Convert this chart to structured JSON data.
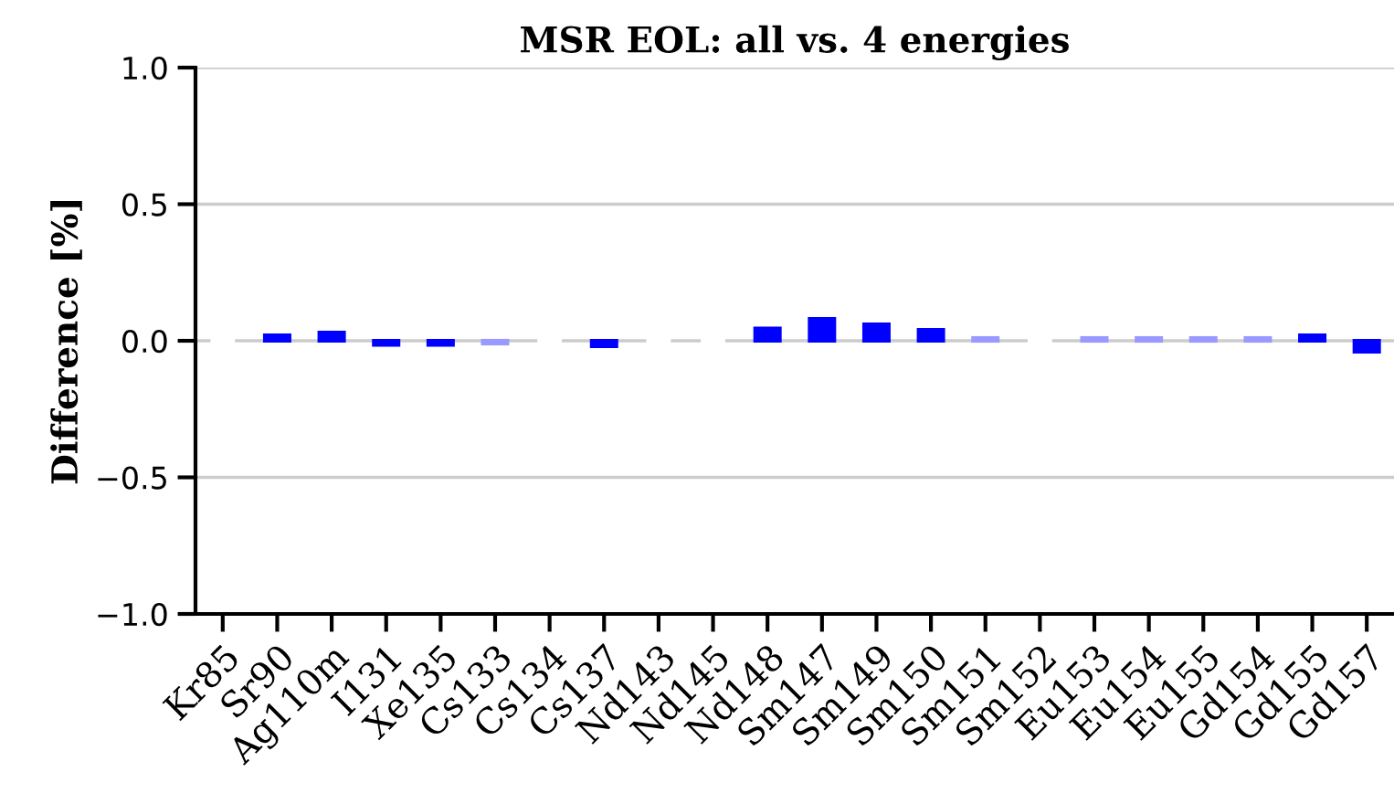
{
  "chart_data": {
    "type": "bar",
    "title": "MSR EOL: all vs. 4 energies",
    "ylabel": "Difference [%]",
    "categories": [
      "Kr85",
      "Sr90",
      "Ag110m",
      "I131",
      "Xe135",
      "Cs133",
      "Cs134",
      "Cs137",
      "Nd143",
      "Nd145",
      "Nd148",
      "Sm147",
      "Sm149",
      "Sm150",
      "Sm151",
      "Sm152",
      "Eu153",
      "Eu154",
      "Eu155",
      "Gd154",
      "Gd155",
      "Gd157"
    ],
    "values": [
      0,
      0.02,
      0.03,
      -0.015,
      -0.015,
      -0.01,
      0,
      -0.02,
      0,
      0,
      0.045,
      0.08,
      0.06,
      0.04,
      0.01,
      0,
      0.01,
      0.01,
      0.01,
      0.01,
      0.02,
      -0.04
    ],
    "colors": [
      "#ffffff",
      "#0000ff",
      "#0000ff",
      "#0000ff",
      "#0000ff",
      "#9999ff",
      "#ffffff",
      "#0000ff",
      "#ffffff",
      "#ffffff",
      "#0000ff",
      "#0000ff",
      "#0000ff",
      "#0000ff",
      "#9999ff",
      "#ffffff",
      "#9999ff",
      "#9999ff",
      "#9999ff",
      "#9999ff",
      "#0000ff",
      "#0000ff"
    ],
    "ylim": [
      -1.0,
      1.0
    ],
    "yticks": [
      {
        "value": -1.0,
        "label": "−1.0"
      },
      {
        "value": -0.5,
        "label": "−0.5"
      },
      {
        "value": 0.0,
        "label": "0.0"
      },
      {
        "value": 0.5,
        "label": "0.5"
      },
      {
        "value": 1.0,
        "label": "1.0"
      }
    ],
    "grid": "y"
  }
}
